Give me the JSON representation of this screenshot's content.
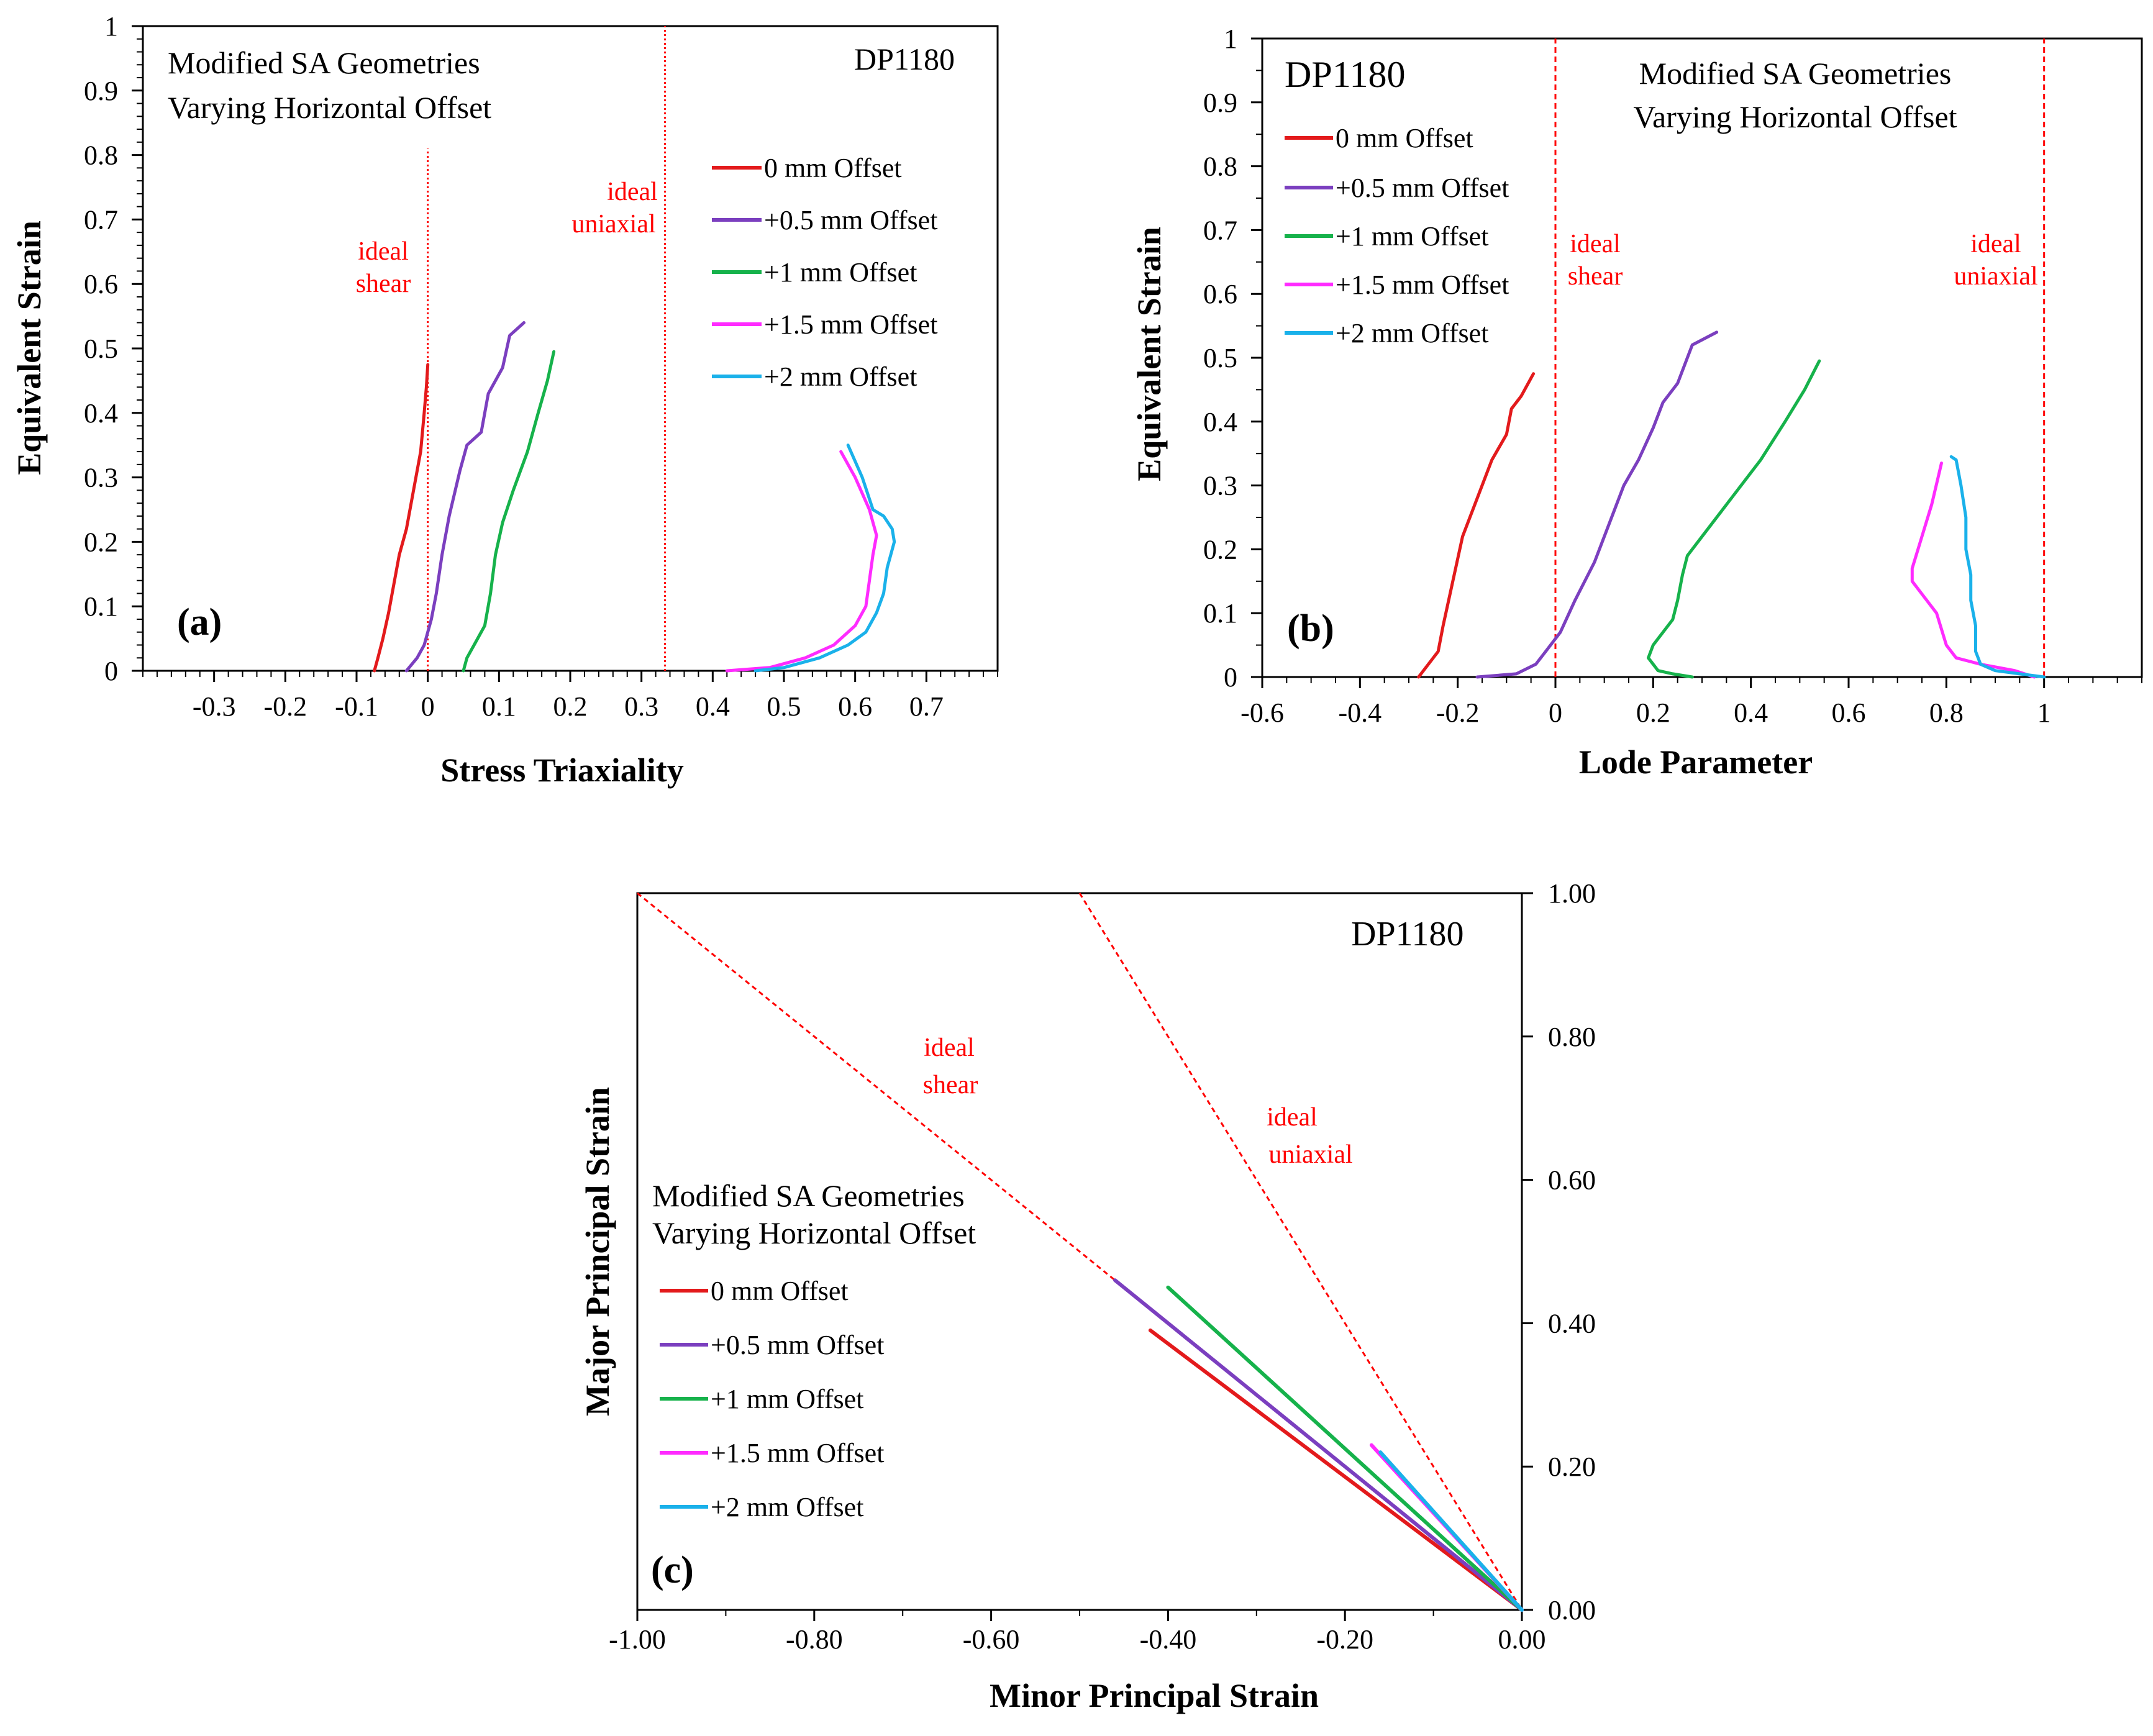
{
  "colors": {
    "s0": "#e31a1c",
    "s05": "#7b3fbf",
    "s1": "#16b24b",
    "s15": "#ff2bff",
    "s2": "#1ab1ea",
    "ideal": "#ff0000",
    "axis": "#000000"
  },
  "chart_data": [
    {
      "id": "a",
      "type": "line",
      "panel_label": "(a)",
      "xlabel": "Stress Triaxiality",
      "ylabel": "Equivalent Strain",
      "xlim": [
        -0.4,
        0.8
      ],
      "ylim": [
        0,
        1
      ],
      "xticks": [
        "-0.3",
        "-0.2",
        "-0.1",
        "0",
        "0.1",
        "0.2",
        "0.3",
        "0.4",
        "0.5",
        "0.6",
        "0.7"
      ],
      "yticks": [
        "0",
        "0.1",
        "0.2",
        "0.3",
        "0.4",
        "0.5",
        "0.6",
        "0.7",
        "0.8",
        "0.9",
        "1"
      ],
      "annotations": {
        "title_line1": "Modified SA Geometries",
        "title_line2": "Varying Horizontal Offset",
        "material": "DP1180",
        "ideal_shear_1": "ideal",
        "ideal_shear_2": "shear",
        "ideal_uniaxial_1": "ideal",
        "ideal_uniaxial_2": "uniaxial"
      },
      "reference_lines": [
        {
          "name": "ideal shear",
          "x": 0,
          "y_range": [
            0,
            0.81
          ]
        },
        {
          "name": "ideal uniaxial",
          "x": 0.333,
          "y_range": [
            0,
            1
          ]
        }
      ],
      "legend": [
        "0 mm Offset",
        "+0.5 mm Offset",
        "+1 mm Offset",
        "+1.5 mm Offset",
        "+2 mm Offset"
      ],
      "series": [
        {
          "name": "0 mm Offset",
          "color_key": "s0",
          "points": [
            [
              -0.075,
              0
            ],
            [
              -0.07,
              0.02
            ],
            [
              -0.063,
              0.05
            ],
            [
              -0.055,
              0.09
            ],
            [
              -0.05,
              0.12
            ],
            [
              -0.04,
              0.18
            ],
            [
              -0.03,
              0.22
            ],
            [
              -0.02,
              0.28
            ],
            [
              -0.01,
              0.34
            ],
            [
              -0.005,
              0.4
            ],
            [
              -0.002,
              0.44
            ],
            [
              0,
              0.475
            ]
          ]
        },
        {
          "name": "+0.5 mm Offset",
          "color_key": "s05",
          "points": [
            [
              -0.03,
              0
            ],
            [
              -0.015,
              0.02
            ],
            [
              -0.005,
              0.04
            ],
            [
              0.005,
              0.08
            ],
            [
              0.012,
              0.12
            ],
            [
              0.02,
              0.18
            ],
            [
              0.03,
              0.24
            ],
            [
              0.045,
              0.31
            ],
            [
              0.055,
              0.35
            ],
            [
              0.075,
              0.37
            ],
            [
              0.085,
              0.43
            ],
            [
              0.105,
              0.47
            ],
            [
              0.115,
              0.52
            ],
            [
              0.135,
              0.54
            ]
          ]
        },
        {
          "name": "+1 mm Offset",
          "color_key": "s1",
          "points": [
            [
              0.05,
              0
            ],
            [
              0.055,
              0.02
            ],
            [
              0.065,
              0.04
            ],
            [
              0.08,
              0.07
            ],
            [
              0.088,
              0.12
            ],
            [
              0.095,
              0.18
            ],
            [
              0.105,
              0.23
            ],
            [
              0.12,
              0.28
            ],
            [
              0.14,
              0.34
            ],
            [
              0.155,
              0.4
            ],
            [
              0.168,
              0.45
            ],
            [
              0.177,
              0.495
            ]
          ]
        },
        {
          "name": "+1.5 mm Offset",
          "color_key": "s15",
          "points": [
            [
              0.42,
              0
            ],
            [
              0.48,
              0.005
            ],
            [
              0.53,
              0.02
            ],
            [
              0.57,
              0.04
            ],
            [
              0.6,
              0.07
            ],
            [
              0.615,
              0.1
            ],
            [
              0.62,
              0.14
            ],
            [
              0.625,
              0.18
            ],
            [
              0.63,
              0.21
            ],
            [
              0.62,
              0.25
            ],
            [
              0.6,
              0.3
            ],
            [
              0.58,
              0.34
            ]
          ]
        },
        {
          "name": "+2 mm Offset",
          "color_key": "s2",
          "points": [
            [
              0.46,
              0
            ],
            [
              0.5,
              0.005
            ],
            [
              0.55,
              0.02
            ],
            [
              0.59,
              0.04
            ],
            [
              0.615,
              0.06
            ],
            [
              0.63,
              0.09
            ],
            [
              0.64,
              0.12
            ],
            [
              0.645,
              0.16
            ],
            [
              0.655,
              0.2
            ],
            [
              0.652,
              0.22
            ],
            [
              0.64,
              0.24
            ],
            [
              0.625,
              0.25
            ],
            [
              0.61,
              0.3
            ],
            [
              0.59,
              0.35
            ]
          ]
        }
      ]
    },
    {
      "id": "b",
      "type": "line",
      "panel_label": "(b)",
      "xlabel": "Lode Parameter",
      "ylabel": "Equivalent Strain",
      "xlim": [
        -0.6,
        1.2
      ],
      "ylim": [
        0,
        1
      ],
      "xticks": [
        "-0.6",
        "-0.4",
        "-0.2",
        "0",
        "0.2",
        "0.4",
        "0.6",
        "0.8",
        "1"
      ],
      "yticks": [
        "0",
        "0.1",
        "0.2",
        "0.3",
        "0.4",
        "0.5",
        "0.6",
        "0.7",
        "0.8",
        "0.9",
        "1"
      ],
      "annotations": {
        "material": "DP1180",
        "title_line1": "Modified SA Geometries",
        "title_line2": "Varying Horizontal Offset",
        "ideal_shear_1": "ideal",
        "ideal_shear_2": "shear",
        "ideal_uniaxial_1": "ideal",
        "ideal_uniaxial_2": "uniaxial"
      },
      "reference_lines": [
        {
          "name": "ideal shear",
          "x": 0,
          "y_range": [
            0,
            1
          ]
        },
        {
          "name": "ideal uniaxial",
          "x": 1,
          "y_range": [
            0,
            1
          ]
        }
      ],
      "legend": [
        "0 mm Offset",
        "+0.5 mm Offset",
        "+1 mm Offset",
        "+1.5 mm Offset",
        "+2 mm Offset"
      ],
      "series": [
        {
          "name": "0 mm Offset",
          "color_key": "s0",
          "points": [
            [
              -0.28,
              0
            ],
            [
              -0.26,
              0.02
            ],
            [
              -0.24,
              0.04
            ],
            [
              -0.23,
              0.08
            ],
            [
              -0.21,
              0.15
            ],
            [
              -0.19,
              0.22
            ],
            [
              -0.16,
              0.28
            ],
            [
              -0.13,
              0.34
            ],
            [
              -0.1,
              0.38
            ],
            [
              -0.09,
              0.42
            ],
            [
              -0.07,
              0.44
            ],
            [
              -0.045,
              0.475
            ]
          ]
        },
        {
          "name": "+0.5 mm Offset",
          "color_key": "s05",
          "points": [
            [
              -0.16,
              0
            ],
            [
              -0.08,
              0.005
            ],
            [
              -0.04,
              0.02
            ],
            [
              -0.02,
              0.04
            ],
            [
              0.01,
              0.07
            ],
            [
              0.04,
              0.12
            ],
            [
              0.08,
              0.18
            ],
            [
              0.12,
              0.26
            ],
            [
              0.14,
              0.3
            ],
            [
              0.17,
              0.34
            ],
            [
              0.2,
              0.39
            ],
            [
              0.22,
              0.43
            ],
            [
              0.25,
              0.46
            ],
            [
              0.27,
              0.5
            ],
            [
              0.28,
              0.52
            ],
            [
              0.33,
              0.54
            ]
          ]
        },
        {
          "name": "+1 mm Offset",
          "color_key": "s1",
          "points": [
            [
              0.28,
              0
            ],
            [
              0.24,
              0.005
            ],
            [
              0.21,
              0.01
            ],
            [
              0.19,
              0.03
            ],
            [
              0.2,
              0.05
            ],
            [
              0.22,
              0.07
            ],
            [
              0.24,
              0.09
            ],
            [
              0.25,
              0.12
            ],
            [
              0.26,
              0.16
            ],
            [
              0.27,
              0.19
            ],
            [
              0.3,
              0.22
            ],
            [
              0.34,
              0.26
            ],
            [
              0.38,
              0.3
            ],
            [
              0.42,
              0.34
            ],
            [
              0.47,
              0.4
            ],
            [
              0.51,
              0.45
            ],
            [
              0.54,
              0.495
            ]
          ]
        },
        {
          "name": "+1.5 mm Offset",
          "color_key": "s15",
          "points": [
            [
              0.98,
              0
            ],
            [
              0.94,
              0.01
            ],
            [
              0.87,
              0.02
            ],
            [
              0.82,
              0.03
            ],
            [
              0.8,
              0.05
            ],
            [
              0.78,
              0.1
            ],
            [
              0.75,
              0.13
            ],
            [
              0.73,
              0.15
            ],
            [
              0.73,
              0.17
            ],
            [
              0.75,
              0.22
            ],
            [
              0.77,
              0.27
            ],
            [
              0.79,
              0.335
            ]
          ]
        },
        {
          "name": "+2 mm Offset",
          "color_key": "s2",
          "points": [
            [
              1.0,
              0
            ],
            [
              0.95,
              0.005
            ],
            [
              0.9,
              0.01
            ],
            [
              0.87,
              0.02
            ],
            [
              0.86,
              0.04
            ],
            [
              0.86,
              0.08
            ],
            [
              0.85,
              0.12
            ],
            [
              0.85,
              0.16
            ],
            [
              0.84,
              0.2
            ],
            [
              0.84,
              0.25
            ],
            [
              0.83,
              0.3
            ],
            [
              0.82,
              0.34
            ],
            [
              0.81,
              0.345
            ]
          ]
        }
      ]
    },
    {
      "id": "c",
      "type": "line",
      "panel_label": "(c)",
      "xlabel": "Minor Principal Strain",
      "ylabel": "Major Principal Strain",
      "xlim": [
        -1,
        0
      ],
      "ylim": [
        0,
        1
      ],
      "xticks": [
        "-1.00",
        "-0.80",
        "-0.60",
        "-0.40",
        "-0.20",
        "0.00"
      ],
      "yticks": [
        "0.00",
        "0.20",
        "0.40",
        "0.60",
        "0.80",
        "1.00"
      ],
      "annotations": {
        "material": "DP1180",
        "title_line1": "Modified SA Geometries",
        "title_line2": "Varying Horizontal Offset",
        "ideal_shear_1": "ideal",
        "ideal_shear_2": "shear",
        "ideal_uniaxial_1": "ideal",
        "ideal_uniaxial_2": "uniaxial"
      },
      "reference_lines": [
        {
          "name": "ideal shear",
          "points": [
            [
              -1,
              1
            ],
            [
              0,
              0
            ]
          ]
        },
        {
          "name": "ideal uniaxial",
          "points": [
            [
              -0.5,
              1
            ],
            [
              0,
              0
            ]
          ]
        }
      ],
      "legend": [
        "0 mm Offset",
        "+0.5 mm Offset",
        "+1 mm Offset",
        "+1.5 mm Offset",
        "+2 mm Offset"
      ],
      "series": [
        {
          "name": "0 mm Offset",
          "color_key": "s0",
          "points": [
            [
              -0.42,
              0.39
            ],
            [
              0,
              0
            ]
          ]
        },
        {
          "name": "+0.5 mm Offset",
          "color_key": "s05",
          "points": [
            [
              -0.46,
              0.46
            ],
            [
              0,
              0
            ]
          ]
        },
        {
          "name": "+1 mm Offset",
          "color_key": "s1",
          "points": [
            [
              -0.4,
              0.45
            ],
            [
              0,
              0
            ]
          ]
        },
        {
          "name": "+1.5 mm Offset",
          "color_key": "s15",
          "points": [
            [
              -0.17,
              0.23
            ],
            [
              0,
              0
            ]
          ]
        },
        {
          "name": "+2 mm Offset",
          "color_key": "s2",
          "points": [
            [
              -0.16,
              0.22
            ],
            [
              0,
              0
            ]
          ]
        }
      ]
    }
  ]
}
